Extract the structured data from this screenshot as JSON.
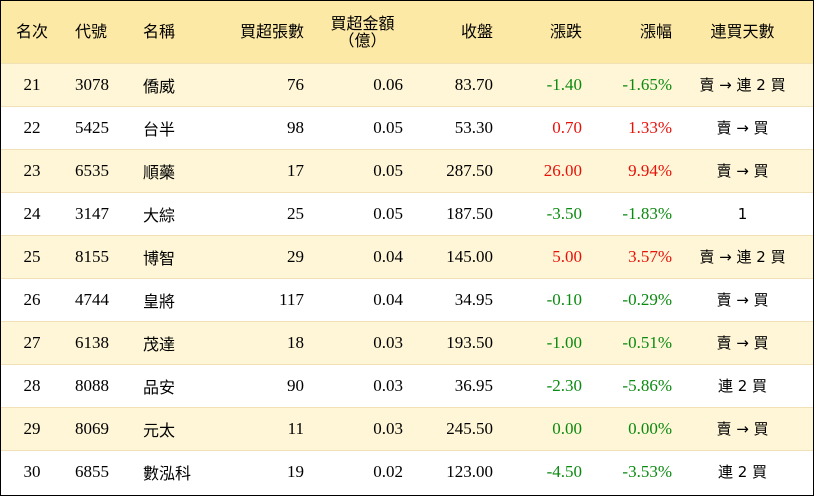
{
  "header": {
    "rank": "名次",
    "code": "代號",
    "name": "名稱",
    "net_buy_lots": "買超張數",
    "net_buy_amount_line1": "買超金額",
    "net_buy_amount_line2": "（億）",
    "close": "收盤",
    "change": "漲跌",
    "change_pct": "漲幅",
    "consecutive_days": "連買天數"
  },
  "colors": {
    "up": "#e6120a",
    "down": "#0b8a10",
    "flat": "#000000",
    "header_bg": "#fde9a6",
    "stripe_bg": "#fef6d6"
  },
  "rows": [
    {
      "rank": "21",
      "code": "3078",
      "name": "僑威",
      "lots": "76",
      "amount": "0.06",
      "close": "83.70",
      "change": "-1.40",
      "pct": "-1.65%",
      "dir": "green",
      "streak": "賣 → 連 2 買"
    },
    {
      "rank": "22",
      "code": "5425",
      "name": "台半",
      "lots": "98",
      "amount": "0.05",
      "close": "53.30",
      "change": "0.70",
      "pct": "1.33%",
      "dir": "red",
      "streak": "賣 → 買"
    },
    {
      "rank": "23",
      "code": "6535",
      "name": "順藥",
      "lots": "17",
      "amount": "0.05",
      "close": "287.50",
      "change": "26.00",
      "pct": "9.94%",
      "dir": "red",
      "streak": "賣 → 買"
    },
    {
      "rank": "24",
      "code": "3147",
      "name": "大綜",
      "lots": "25",
      "amount": "0.05",
      "close": "187.50",
      "change": "-3.50",
      "pct": "-1.83%",
      "dir": "green",
      "streak": "1"
    },
    {
      "rank": "25",
      "code": "8155",
      "name": "博智",
      "lots": "29",
      "amount": "0.04",
      "close": "145.00",
      "change": "5.00",
      "pct": "3.57%",
      "dir": "red",
      "streak": "賣 → 連 2 買"
    },
    {
      "rank": "26",
      "code": "4744",
      "name": "皇將",
      "lots": "117",
      "amount": "0.04",
      "close": "34.95",
      "change": "-0.10",
      "pct": "-0.29%",
      "dir": "green",
      "streak": "賣 → 買"
    },
    {
      "rank": "27",
      "code": "6138",
      "name": "茂達",
      "lots": "18",
      "amount": "0.03",
      "close": "193.50",
      "change": "-1.00",
      "pct": "-0.51%",
      "dir": "green",
      "streak": "賣 → 買"
    },
    {
      "rank": "28",
      "code": "8088",
      "name": "品安",
      "lots": "90",
      "amount": "0.03",
      "close": "36.95",
      "change": "-2.30",
      "pct": "-5.86%",
      "dir": "green",
      "streak": "連 2 買"
    },
    {
      "rank": "29",
      "code": "8069",
      "name": "元太",
      "lots": "11",
      "amount": "0.03",
      "close": "245.50",
      "change": "0.00",
      "pct": "0.00%",
      "dir": "green",
      "streak": "賣 → 買"
    },
    {
      "rank": "30",
      "code": "6855",
      "name": "數泓科",
      "lots": "19",
      "amount": "0.02",
      "close": "123.00",
      "change": "-4.50",
      "pct": "-3.53%",
      "dir": "green",
      "streak": "連 2 買"
    }
  ]
}
